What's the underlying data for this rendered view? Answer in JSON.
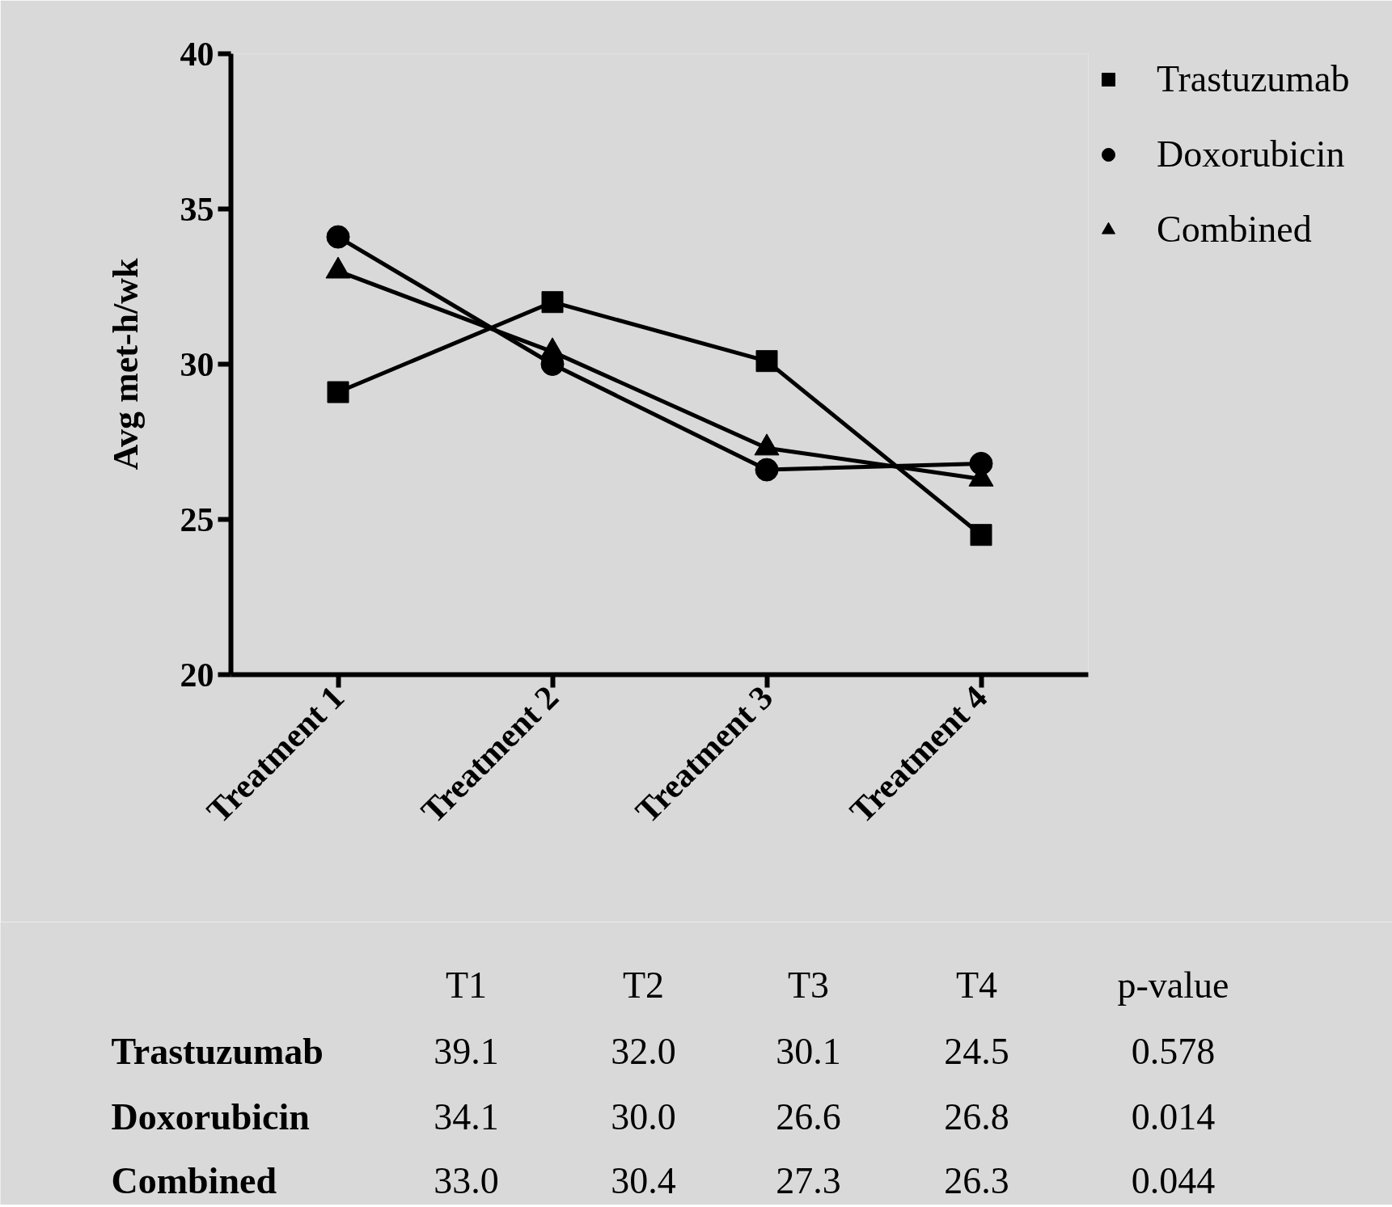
{
  "chart_data": {
    "type": "line",
    "ylabel": "Avg met-h/wk",
    "categories": [
      "Treatment 1",
      "Treatment 2",
      "Treatment 3",
      "Treatment 4"
    ],
    "ylim": [
      20,
      40
    ],
    "yticks": [
      20,
      25,
      30,
      35,
      40
    ],
    "grid": false,
    "legend": "right",
    "line_style": "solid",
    "series": [
      {
        "name": "Trastuzumab",
        "color": "#000000",
        "marker": "square",
        "values": [
          29.1,
          32.0,
          30.1,
          24.5
        ]
      },
      {
        "name": "Doxorubicin",
        "color": "#000000",
        "marker": "circle",
        "values": [
          34.1,
          30.0,
          26.6,
          26.8
        ]
      },
      {
        "name": "Combined",
        "color": "#000000",
        "marker": "triangle",
        "values": [
          33.0,
          30.4,
          27.3,
          26.3
        ]
      }
    ],
    "annotations": [
      "T1",
      "T2",
      "T3",
      "T4",
      "p-value",
      "39.1",
      "32.0",
      "30.1",
      "24.5",
      "0.578",
      "34.1",
      "30.0",
      "26.6",
      "26.8",
      "0.014",
      "33.0",
      "30.4",
      "27.3",
      "26.3",
      "0.044"
    ]
  }
}
